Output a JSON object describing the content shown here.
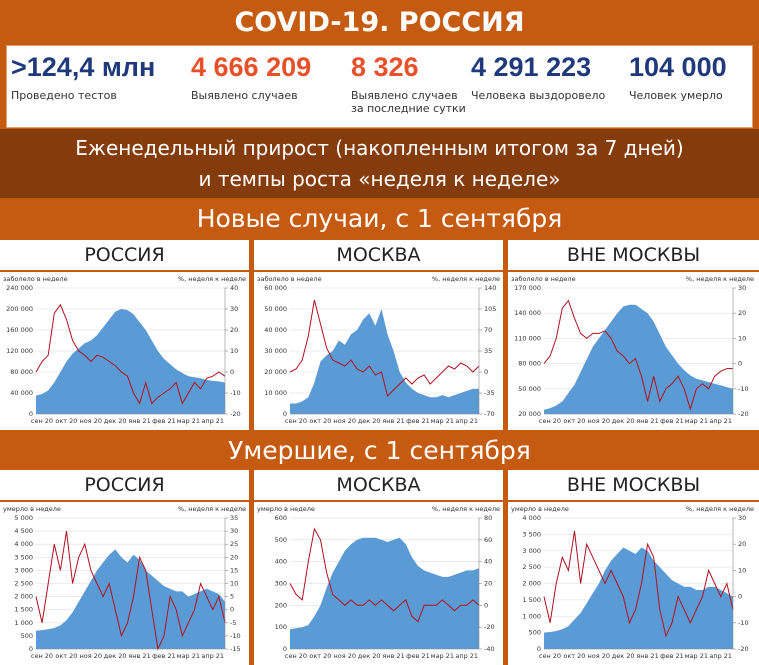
{
  "header": {
    "title": "COVID-19. РОССИЯ"
  },
  "stats": [
    {
      "value": ">124,4 млн",
      "label": "Проведено тестов",
      "color": "#1f3a7a"
    },
    {
      "value": "4 666 209",
      "label": "Выявлено случаев",
      "color": "#e8502a"
    },
    {
      "value": "8 326",
      "label": "Выявлено случаев за последние сутки",
      "color": "#e8502a"
    },
    {
      "value": "4 291 223",
      "label": "Человека выздоровело",
      "color": "#1f3a7a"
    },
    {
      "value": "104 000",
      "label": "Человек умерло",
      "color": "#1f3a7a"
    }
  ],
  "banner": {
    "line1": "Еженедельный прирост (накопленным итогом за 7 дней)",
    "line2": "и темпы роста «неделя к неделе»"
  },
  "sections": [
    {
      "title": "Новые случаи, с 1 сентября"
    },
    {
      "title": "Умершие, с 1 сентября"
    }
  ],
  "chart_data": [
    {
      "type": "area",
      "title": "РОССИЯ",
      "ylabel": "заболело в неделе",
      "y2label": "%, неделя к неделе",
      "categories": [
        "сен 20",
        null,
        null,
        null,
        "окт 20",
        null,
        null,
        null,
        "ноя 20",
        null,
        null,
        null,
        "дек 20",
        null,
        null,
        null,
        "янв 21",
        null,
        null,
        null,
        "фев 21",
        null,
        null,
        null,
        "мар 21",
        null,
        null,
        null,
        "апр 21",
        null,
        null,
        null
      ],
      "ylim": [
        0,
        240000
      ],
      "yticks": [
        0,
        {
          "value": 40000,
          "label": "40 000"
        },
        {
          "value": 80000,
          "label": "80 000"
        },
        {
          "value": 120000,
          "label": "120 000"
        },
        {
          "value": 160000,
          "label": "160 000"
        },
        {
          "value": 200000,
          "label": "200 000"
        },
        {
          "value": 240000,
          "label": "240 000"
        }
      ],
      "y2lim": [
        -20,
        40
      ],
      "y2ticks": [
        -20,
        -10,
        0,
        10,
        20,
        30,
        40
      ],
      "series": [
        {
          "color": "#5b9bd5",
          "values": [
            35000,
            38000,
            45000,
            60000,
            80000,
            100000,
            115000,
            125000,
            135000,
            140000,
            150000,
            165000,
            180000,
            195000,
            200000,
            198000,
            190000,
            175000,
            160000,
            140000,
            120000,
            105000,
            95000,
            85000,
            78000,
            72000,
            70000,
            68000,
            65000,
            63000,
            62000,
            60000
          ]
        },
        {
          "color": "#b01020",
          "axis": "y2",
          "values": [
            0,
            5,
            8,
            28,
            32,
            25,
            15,
            10,
            8,
            5,
            8,
            7,
            5,
            3,
            0,
            -2,
            -10,
            -15,
            -5,
            -15,
            -12,
            -10,
            -8,
            -5,
            -15,
            -10,
            -5,
            -8,
            -3,
            -2,
            0,
            -2
          ]
        }
      ]
    },
    {
      "type": "area",
      "title": "МОСКВА",
      "ylabel": "заболело в неделе",
      "y2label": "%, неделя к неделе",
      "categories": [
        "сен 20",
        null,
        null,
        null,
        "окт 20",
        null,
        null,
        null,
        "ноя 20",
        null,
        null,
        null,
        "дек 20",
        null,
        null,
        null,
        "янв 21",
        null,
        null,
        null,
        "фев 21",
        null,
        null,
        null,
        "мар 21",
        null,
        null,
        null,
        "апр 21",
        null,
        null,
        null
      ],
      "ylim": [
        0,
        60000
      ],
      "yticks": [
        0,
        {
          "value": 10000,
          "label": "10 000"
        },
        {
          "value": 20000,
          "label": "20 000"
        },
        {
          "value": 30000,
          "label": "30 000"
        },
        {
          "value": 40000,
          "label": "40 000"
        },
        {
          "value": 50000,
          "label": "50 000"
        },
        {
          "value": 60000,
          "label": "60 000"
        }
      ],
      "y2lim": [
        -70,
        140
      ],
      "y2ticks": [
        -70,
        -35,
        0,
        35,
        70,
        105,
        140
      ],
      "series": [
        {
          "color": "#5b9bd5",
          "values": [
            5000,
            5000,
            6000,
            8000,
            15000,
            25000,
            28000,
            30000,
            35000,
            33000,
            38000,
            40000,
            45000,
            48000,
            42000,
            50000,
            38000,
            30000,
            20000,
            15000,
            12000,
            10000,
            9000,
            8000,
            8000,
            9000,
            8000,
            9000,
            10000,
            11000,
            12000,
            12000
          ]
        },
        {
          "color": "#b01020",
          "axis": "y2",
          "values": [
            0,
            5,
            20,
            60,
            120,
            80,
            40,
            20,
            15,
            10,
            20,
            5,
            0,
            10,
            -5,
            0,
            -40,
            -30,
            -20,
            -10,
            -20,
            -10,
            -5,
            -20,
            -10,
            0,
            10,
            5,
            15,
            10,
            0,
            10
          ]
        }
      ]
    },
    {
      "type": "area",
      "title": "ВНЕ МОСКВЫ",
      "ylabel": "заболело в неделе",
      "y2label": "%, неделя к неделе",
      "categories": [
        "сен 20",
        null,
        null,
        null,
        "окт 20",
        null,
        null,
        null,
        "ноя 20",
        null,
        null,
        null,
        "дек 20",
        null,
        null,
        null,
        "янв 21",
        null,
        null,
        null,
        "фев 21",
        null,
        null,
        null,
        "мар 21",
        null,
        null,
        null,
        "апр 21",
        null,
        null,
        null
      ],
      "ylim": [
        20000,
        170000
      ],
      "yticks": [
        {
          "value": 20000,
          "label": "20 000"
        },
        {
          "value": 50000,
          "label": "50 000"
        },
        {
          "value": 80000,
          "label": "80 000"
        },
        {
          "value": 110000,
          "label": "110 000"
        },
        {
          "value": 140000,
          "label": "140 000"
        },
        {
          "value": 170000,
          "label": "170 000"
        }
      ],
      "y2lim": [
        -20,
        30
      ],
      "y2ticks": [
        -20,
        -10,
        0,
        10,
        20,
        30
      ],
      "series": [
        {
          "color": "#5b9bd5",
          "values": [
            25000,
            27000,
            30000,
            35000,
            45000,
            55000,
            70000,
            85000,
            100000,
            110000,
            120000,
            130000,
            140000,
            148000,
            150000,
            150000,
            145000,
            140000,
            130000,
            115000,
            100000,
            90000,
            80000,
            72000,
            66000,
            62000,
            60000,
            58000,
            56000,
            54000,
            52000,
            50000
          ]
        },
        {
          "color": "#b01020",
          "axis": "y2",
          "values": [
            0,
            3,
            10,
            22,
            25,
            18,
            12,
            10,
            12,
            12,
            13,
            10,
            5,
            3,
            0,
            2,
            -5,
            -15,
            -5,
            -15,
            -10,
            -8,
            -5,
            -10,
            -18,
            -10,
            -8,
            -10,
            -5,
            -3,
            -2,
            -2
          ]
        }
      ]
    },
    {
      "type": "area",
      "title": "РОССИЯ",
      "ylabel": "умерло в неделе",
      "y2label": "%, неделя к неделе",
      "categories": [
        "сен 20",
        null,
        null,
        null,
        "окт 20",
        null,
        null,
        null,
        "ноя 20",
        null,
        null,
        null,
        "дек 20",
        null,
        null,
        null,
        "янв 21",
        null,
        null,
        null,
        "фев 21",
        null,
        null,
        null,
        "мар 21",
        null,
        null,
        null,
        "апр 21",
        null,
        null,
        null
      ],
      "ylim": [
        0,
        5000
      ],
      "yticks": [
        0,
        500,
        {
          "value": 1000,
          "label": "1 000"
        },
        {
          "value": 1500,
          "label": "1 500"
        },
        {
          "value": 2000,
          "label": "2 000"
        },
        {
          "value": 2500,
          "label": "2 500"
        },
        {
          "value": 3000,
          "label": "3 000"
        },
        {
          "value": 3500,
          "label": "3 500"
        },
        {
          "value": 4000,
          "label": "4 000"
        },
        {
          "value": 4500,
          "label": "4 500"
        },
        {
          "value": 5000,
          "label": "5 000"
        }
      ],
      "y2lim": [
        -15,
        35
      ],
      "y2ticks": [
        -15,
        -10,
        -5,
        0,
        5,
        10,
        15,
        20,
        25,
        30,
        35
      ],
      "series": [
        {
          "color": "#5b9bd5",
          "values": [
            700,
            720,
            750,
            800,
            900,
            1100,
            1400,
            1800,
            2200,
            2600,
            3000,
            3300,
            3600,
            3800,
            3500,
            3300,
            3600,
            3400,
            3000,
            2800,
            2600,
            2400,
            2300,
            2200,
            2200,
            2000,
            2100,
            2200,
            2300,
            2200,
            2100,
            1800
          ]
        },
        {
          "color": "#b01020",
          "axis": "y2",
          "values": [
            5,
            -5,
            10,
            25,
            15,
            30,
            10,
            20,
            25,
            15,
            10,
            5,
            10,
            0,
            -10,
            -5,
            5,
            20,
            15,
            0,
            -15,
            -10,
            5,
            0,
            -10,
            -5,
            0,
            10,
            5,
            0,
            5,
            -5
          ]
        }
      ]
    },
    {
      "type": "area",
      "title": "МОСКВА",
      "ylabel": "умерло в неделе",
      "y2label": "%, неделя к неделе",
      "categories": [
        "сен 20",
        null,
        null,
        null,
        "окт 20",
        null,
        null,
        null,
        "ноя 20",
        null,
        null,
        null,
        "дек 20",
        null,
        null,
        null,
        "янв 21",
        null,
        null,
        null,
        "фев 21",
        null,
        null,
        null,
        "мар 21",
        null,
        null,
        null,
        "апр 21",
        null,
        null,
        null
      ],
      "ylim": [
        0,
        600
      ],
      "yticks": [
        0,
        100,
        200,
        300,
        400,
        500,
        600
      ],
      "y2lim": [
        -40,
        80
      ],
      "y2ticks": [
        -40,
        -20,
        0,
        20,
        40,
        60,
        80
      ],
      "series": [
        {
          "color": "#5b9bd5",
          "values": [
            90,
            95,
            100,
            110,
            150,
            200,
            280,
            350,
            400,
            450,
            480,
            500,
            510,
            510,
            510,
            500,
            490,
            500,
            510,
            480,
            420,
            380,
            360,
            350,
            340,
            330,
            330,
            340,
            350,
            360,
            360,
            370
          ]
        },
        {
          "color": "#b01020",
          "axis": "y2",
          "values": [
            20,
            10,
            5,
            40,
            70,
            60,
            30,
            10,
            5,
            0,
            5,
            0,
            0,
            5,
            0,
            5,
            0,
            -5,
            0,
            5,
            -10,
            -15,
            0,
            0,
            0,
            5,
            0,
            -5,
            0,
            0,
            5,
            0
          ]
        }
      ]
    },
    {
      "type": "area",
      "title": "ВНЕ МОСКВЫ",
      "ylabel": "умерло в неделе",
      "y2label": "%, неделя к неделе",
      "categories": [
        "сен 20",
        null,
        null,
        null,
        "окт 20",
        null,
        null,
        null,
        "ноя 20",
        null,
        null,
        null,
        "дек 20",
        null,
        null,
        null,
        "янв 21",
        null,
        null,
        null,
        "фев 21",
        null,
        null,
        null,
        "мар 21",
        null,
        null,
        null,
        "апр 21",
        null,
        null,
        null
      ],
      "ylim": [
        0,
        4000
      ],
      "yticks": [
        0,
        500,
        {
          "value": 1000,
          "label": "1 000"
        },
        {
          "value": 1500,
          "label": "1 500"
        },
        {
          "value": 2000,
          "label": "2 000"
        },
        {
          "value": 2500,
          "label": "2 500"
        },
        {
          "value": 3000,
          "label": "3 000"
        },
        {
          "value": 3500,
          "label": "3 500"
        },
        {
          "value": 4000,
          "label": "4 000"
        }
      ],
      "y2lim": [
        -20,
        30
      ],
      "y2ticks": [
        -20,
        -10,
        0,
        10,
        20,
        30
      ],
      "series": [
        {
          "color": "#5b9bd5",
          "values": [
            500,
            520,
            550,
            600,
            700,
            900,
            1100,
            1400,
            1700,
            2000,
            2400,
            2700,
            2900,
            3100,
            3000,
            2900,
            3100,
            3000,
            2700,
            2500,
            2300,
            2100,
            2000,
            1900,
            1900,
            1800,
            1800,
            1900,
            1900,
            1800,
            1700,
            1600
          ]
        },
        {
          "color": "#b01020",
          "axis": "y2",
          "values": [
            0,
            -10,
            5,
            15,
            10,
            25,
            5,
            20,
            15,
            10,
            5,
            10,
            5,
            0,
            -10,
            -5,
            5,
            20,
            15,
            -5,
            -15,
            -10,
            0,
            -5,
            -10,
            -5,
            0,
            10,
            5,
            0,
            5,
            -5
          ]
        }
      ]
    }
  ]
}
